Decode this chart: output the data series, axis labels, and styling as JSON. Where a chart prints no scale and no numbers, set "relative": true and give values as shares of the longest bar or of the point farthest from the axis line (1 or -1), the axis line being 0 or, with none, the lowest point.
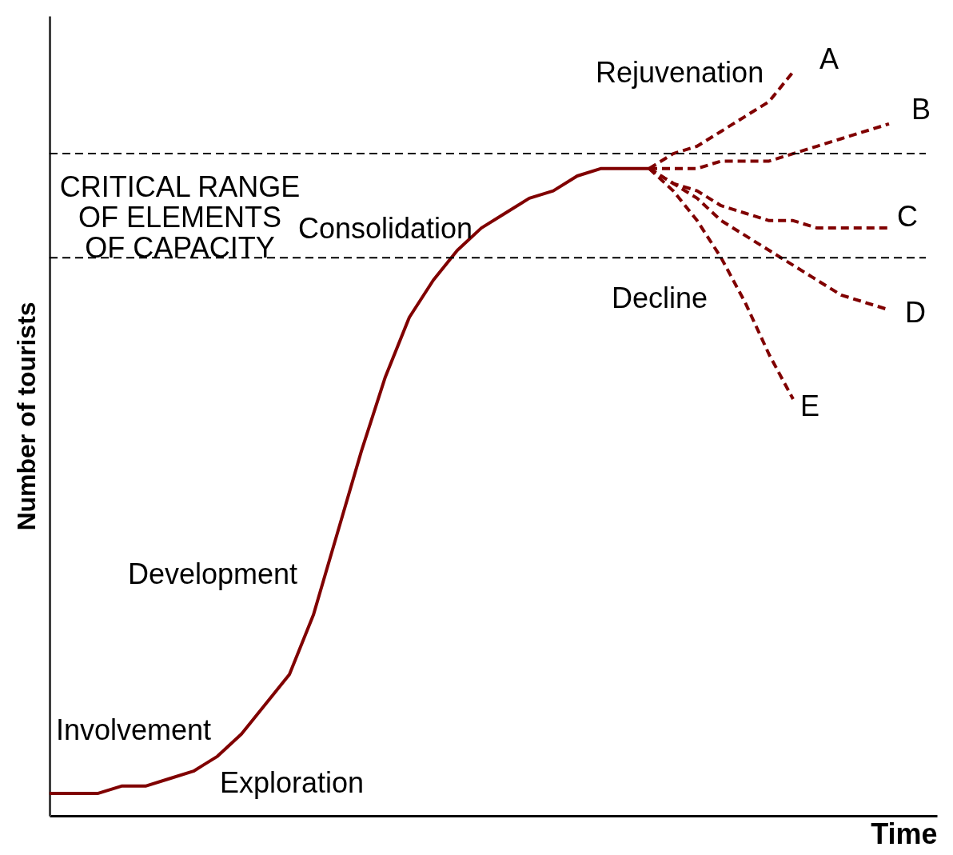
{
  "chart_data": {
    "type": "line",
    "relative": true,
    "xlabel": "Time",
    "ylabel": "Number of tourists",
    "tick_labels": false,
    "grid": false,
    "legend": false,
    "categories": [
      null,
      null,
      null,
      null,
      null,
      null,
      null,
      null,
      null,
      null,
      null,
      null,
      null,
      null,
      null,
      null,
      null,
      null,
      null,
      null,
      null,
      null,
      null,
      null,
      null,
      null,
      null,
      null,
      null,
      null,
      null,
      null,
      null,
      null,
      null,
      null,
      null,
      null
    ],
    "series": [
      {
        "color": "#800000",
        "line_style": "solid",
        "values": [
          0.03,
          0.03,
          0.03,
          0.04,
          0.04,
          0.05,
          0.06,
          0.08,
          0.11,
          0.15,
          0.19,
          0.27,
          0.38,
          0.49,
          0.59,
          0.67,
          0.72,
          0.76,
          0.79,
          0.81,
          0.83,
          0.84,
          0.86,
          0.87,
          0.87,
          0.87,
          null,
          null,
          null,
          null,
          null,
          null,
          null,
          null,
          null,
          null,
          null,
          null
        ]
      },
      {
        "name": "A",
        "color": "#800000",
        "line_style": "dashed",
        "values": [
          null,
          null,
          null,
          null,
          null,
          null,
          null,
          null,
          null,
          null,
          null,
          null,
          null,
          null,
          null,
          null,
          null,
          null,
          null,
          null,
          null,
          null,
          null,
          null,
          null,
          0.87,
          0.89,
          0.9,
          0.92,
          0.94,
          0.96,
          1.0,
          null,
          null,
          null,
          null,
          null,
          null
        ]
      },
      {
        "name": "B",
        "color": "#800000",
        "line_style": "dashed",
        "values": [
          null,
          null,
          null,
          null,
          null,
          null,
          null,
          null,
          null,
          null,
          null,
          null,
          null,
          null,
          null,
          null,
          null,
          null,
          null,
          null,
          null,
          null,
          null,
          null,
          null,
          0.87,
          0.87,
          0.87,
          0.88,
          0.88,
          0.88,
          0.89,
          0.9,
          0.91,
          0.92,
          0.93,
          null,
          null
        ]
      },
      {
        "name": "C",
        "color": "#800000",
        "line_style": "dashed",
        "values": [
          null,
          null,
          null,
          null,
          null,
          null,
          null,
          null,
          null,
          null,
          null,
          null,
          null,
          null,
          null,
          null,
          null,
          null,
          null,
          null,
          null,
          null,
          null,
          null,
          null,
          0.87,
          0.85,
          0.84,
          0.82,
          0.81,
          0.8,
          0.8,
          0.79,
          0.79,
          0.79,
          0.79,
          null,
          null
        ]
      },
      {
        "name": "D",
        "color": "#800000",
        "line_style": "dashed",
        "values": [
          null,
          null,
          null,
          null,
          null,
          null,
          null,
          null,
          null,
          null,
          null,
          null,
          null,
          null,
          null,
          null,
          null,
          null,
          null,
          null,
          null,
          null,
          null,
          null,
          null,
          0.87,
          0.85,
          0.83,
          0.8,
          0.78,
          0.76,
          0.74,
          0.72,
          0.7,
          0.69,
          0.68,
          null,
          null
        ]
      },
      {
        "name": "E",
        "color": "#800000",
        "line_style": "dashed",
        "values": [
          null,
          null,
          null,
          null,
          null,
          null,
          null,
          null,
          null,
          null,
          null,
          null,
          null,
          null,
          null,
          null,
          null,
          null,
          null,
          null,
          null,
          null,
          null,
          null,
          null,
          0.87,
          0.84,
          0.8,
          0.75,
          0.69,
          0.62,
          0.56,
          null,
          null,
          null,
          null,
          null,
          null
        ]
      }
    ],
    "ref_lines": [
      {
        "axis": "y",
        "value": 0.89,
        "color": "#000000",
        "line_style": "dashed"
      },
      {
        "axis": "y",
        "value": 0.75,
        "color": "#000000",
        "line_style": "dashed"
      }
    ],
    "annotations": [
      "Rejuvenation",
      "CRITICAL RANGE\nOF ELEMENTS\nOF CAPACITY",
      "Consolidation",
      "Decline",
      "Development",
      "Involvement",
      "Exploration"
    ]
  }
}
